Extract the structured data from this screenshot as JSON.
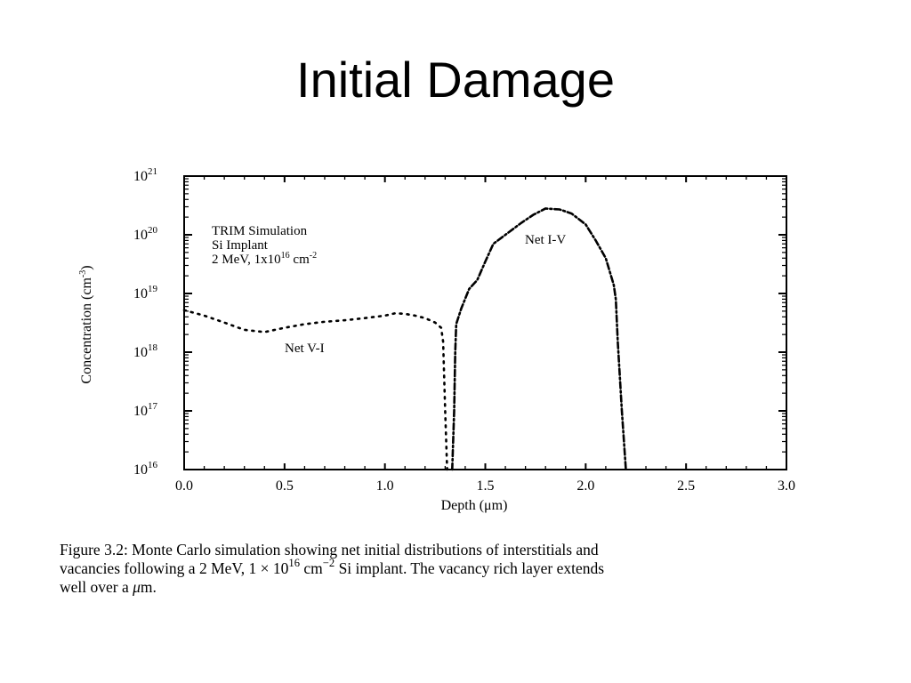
{
  "slide": {
    "title": "Initial Damage"
  },
  "chart_data": {
    "type": "line",
    "ylabel": "Concentration (cm-3)",
    "ylabel_parts": {
      "base": "Concentration (cm",
      "exp": "-3",
      "close": ")"
    },
    "xlabel": "Depth (μm)",
    "xlim": [
      0.0,
      3.0
    ],
    "y_scale": "log",
    "ylim": [
      1e+16,
      1e+21
    ],
    "x_ticks": [
      "0.0",
      "0.5",
      "1.0",
      "1.5",
      "2.0",
      "2.5",
      "3.0"
    ],
    "x_tick_values": [
      0.0,
      0.5,
      1.0,
      1.5,
      2.0,
      2.5,
      3.0
    ],
    "y_ticks": [
      {
        "base": "10",
        "exp": "16"
      },
      {
        "base": "10",
        "exp": "17"
      },
      {
        "base": "10",
        "exp": "18"
      },
      {
        "base": "10",
        "exp": "19"
      },
      {
        "base": "10",
        "exp": "20"
      },
      {
        "base": "10",
        "exp": "21"
      }
    ],
    "annotation": {
      "line1": "TRIM Simulation",
      "line2": "Si Implant",
      "line3_a": "2 MeV, 1x10",
      "line3_exp": "16",
      "line3_b": " cm",
      "line3_exp2": "-2"
    },
    "series": [
      {
        "name": "Net V-I",
        "style": "dotted",
        "points": [
          [
            0.0,
            5.2e+18
          ],
          [
            0.1,
            4.2e+18
          ],
          [
            0.2,
            3.2e+18
          ],
          [
            0.3,
            2.4e+18
          ],
          [
            0.4,
            2.2e+18
          ],
          [
            0.5,
            2.6e+18
          ],
          [
            0.6,
            3e+18
          ],
          [
            0.7,
            3.3e+18
          ],
          [
            0.8,
            3.5e+18
          ],
          [
            0.9,
            3.8e+18
          ],
          [
            1.0,
            4.2e+18
          ],
          [
            1.05,
            4.6e+18
          ],
          [
            1.1,
            4.5e+18
          ],
          [
            1.15,
            4.2e+18
          ],
          [
            1.2,
            3.8e+18
          ],
          [
            1.25,
            3.2e+18
          ],
          [
            1.28,
            2.6e+18
          ],
          [
            1.29,
            1.5e+18
          ],
          [
            1.3,
            1e+17
          ],
          [
            1.31,
            1e+16
          ]
        ]
      },
      {
        "name": "Net I-V",
        "style": "dashdot",
        "points": [
          [
            1.335,
            1e+16
          ],
          [
            1.345,
            1e+17
          ],
          [
            1.35,
            1e+18
          ],
          [
            1.355,
            3e+18
          ],
          [
            1.38,
            5.5e+18
          ],
          [
            1.42,
            1.2e+19
          ],
          [
            1.46,
            1.7e+19
          ],
          [
            1.5,
            3.5e+19
          ],
          [
            1.54,
            7e+19
          ],
          [
            1.6,
            1e+20
          ],
          [
            1.68,
            1.6e+20
          ],
          [
            1.74,
            2.2e+20
          ],
          [
            1.8,
            2.8e+20
          ],
          [
            1.87,
            2.7e+20
          ],
          [
            1.93,
            2.3e+20
          ],
          [
            2.0,
            1.5e+20
          ],
          [
            2.05,
            8e+19
          ],
          [
            2.1,
            4e+19
          ],
          [
            2.14,
            1.4e+19
          ],
          [
            2.15,
            8e+18
          ],
          [
            2.16,
            1.5e+18
          ],
          [
            2.18,
            1e+17
          ],
          [
            2.2,
            1e+16
          ]
        ]
      }
    ]
  },
  "caption": {
    "line1": "Figure 3.2: Monte Carlo simulation showing net initial distributions of interstitials and",
    "line2_a": "vacancies following a 2 MeV, 1 × 10",
    "line2_exp": "16",
    "line2_b": " cm",
    "line2_exp2": "−2",
    "line2_c": " Si implant.  The vacancy rich layer extends",
    "line3_a": "well over a ",
    "line3_mu": "μ",
    "line3_b": "m."
  }
}
